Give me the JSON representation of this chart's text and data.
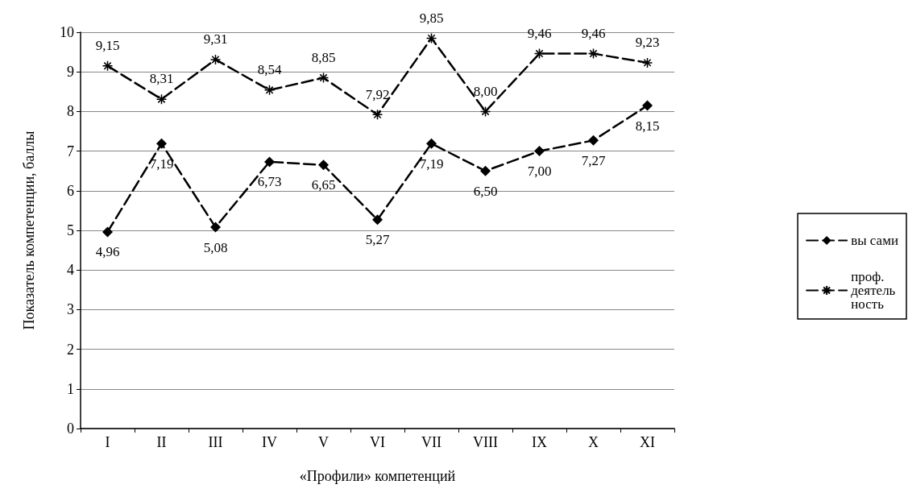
{
  "chart_data": {
    "type": "line",
    "xlabel": "«Профили» компетенций",
    "ylabel": "Показатель компетенции, баллы",
    "categories": [
      "I",
      "II",
      "III",
      "IV",
      "V",
      "VI",
      "VII",
      "VIII",
      "IX",
      "X",
      "XI"
    ],
    "series": [
      {
        "name": "вы сами",
        "color": "#000000",
        "marker": "diamond",
        "line_style": "dashed",
        "values": [
          4.96,
          7.19,
          5.08,
          6.73,
          6.65,
          5.27,
          7.19,
          6.5,
          7.0,
          7.27,
          8.15
        ],
        "value_labels": [
          "4,96",
          "7,19",
          "5,08",
          "6,73",
          "6,65",
          "5,27",
          "7,19",
          "6,50",
          "7,00",
          "7,27",
          "8,15"
        ]
      },
      {
        "name": "проф. деятельность",
        "color": "#000000",
        "marker": "cross",
        "line_style": "dashed",
        "values": [
          9.15,
          8.31,
          9.31,
          8.54,
          8.85,
          7.92,
          9.85,
          8.0,
          9.46,
          9.46,
          9.23
        ],
        "value_labels": [
          "9,15",
          "8,31",
          "9,31",
          "8,54",
          "8,85",
          "7,92",
          "9,85",
          "8,00",
          "9,46",
          "9,46",
          "9,23"
        ]
      }
    ],
    "ylim": [
      0,
      10
    ],
    "yticks": [
      0,
      1,
      2,
      3,
      4,
      5,
      6,
      7,
      8,
      9,
      10
    ],
    "grid": "y",
    "legend": "right"
  }
}
